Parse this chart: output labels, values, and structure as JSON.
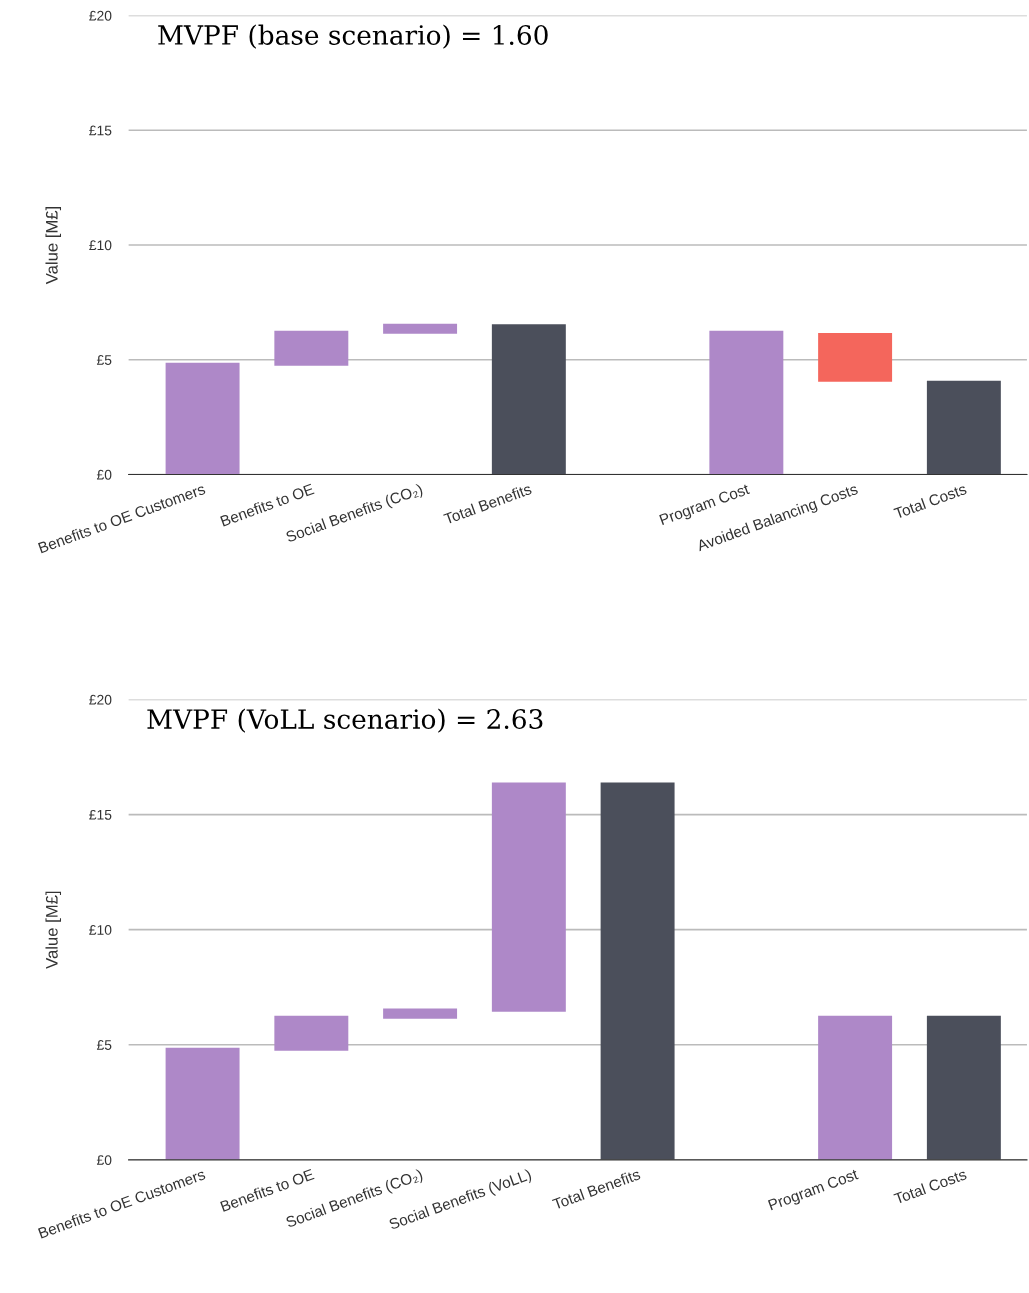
{
  "chart_data": [
    {
      "type": "bar",
      "title": "MVPF (base scenario) = 1.60",
      "ylabel": "Value [M£]",
      "categories": [
        "Benefits to OE Customers",
        "Benefits to OE",
        "Social Benefits (CO₂)",
        "Total Benefits",
        null,
        "Program Cost",
        "Avoided Balancing Costs",
        "Total Costs"
      ],
      "values": [
        4.87,
        1.52,
        0.44,
        6.55,
        null,
        6.26,
        -2.13,
        4.09
      ],
      "base": [
        0,
        4.74,
        6.13,
        0,
        null,
        0,
        6.17,
        0
      ],
      "colors": [
        "#ae88c8",
        "#ae88c8",
        "#ae88c8",
        "#4b4f5b",
        null,
        "#ae88c8",
        "#f4665c",
        "#4b4f5b"
      ],
      "ylim": [
        0,
        20
      ],
      "yticks": [
        {
          "value": 0,
          "label": "£0"
        },
        {
          "value": 5,
          "label": "£5"
        },
        {
          "value": 10,
          "label": "£10"
        },
        {
          "value": 15,
          "label": "£15"
        },
        {
          "value": 20,
          "label": "£20"
        }
      ],
      "grid": "y",
      "legend": false
    },
    {
      "type": "bar",
      "title": "MVPF (VoLL scenario) = 2.63",
      "ylabel": "Value [M£]",
      "categories": [
        "Benefits to OE Customers",
        "Benefits to OE",
        "Social Benefits (CO₂)",
        "Social Benefits (VoLL)",
        "Total Benefits",
        null,
        "Program Cost",
        "Total Costs"
      ],
      "values": [
        4.87,
        1.52,
        0.44,
        9.96,
        16.39,
        null,
        6.26,
        6.26
      ],
      "base": [
        0,
        4.74,
        6.13,
        6.43,
        0,
        null,
        0,
        0
      ],
      "colors": [
        "#ae88c8",
        "#ae88c8",
        "#ae88c8",
        "#ae88c8",
        "#4b4f5b",
        null,
        "#ae88c8",
        "#4b4f5b"
      ],
      "ylim": [
        0,
        20
      ],
      "yticks": [
        {
          "value": 0,
          "label": "£0"
        },
        {
          "value": 5,
          "label": "£5"
        },
        {
          "value": 10,
          "label": "£10"
        },
        {
          "value": 15,
          "label": "£15"
        },
        {
          "value": 20,
          "label": "£20"
        }
      ],
      "grid": "y",
      "legend": false
    }
  ]
}
